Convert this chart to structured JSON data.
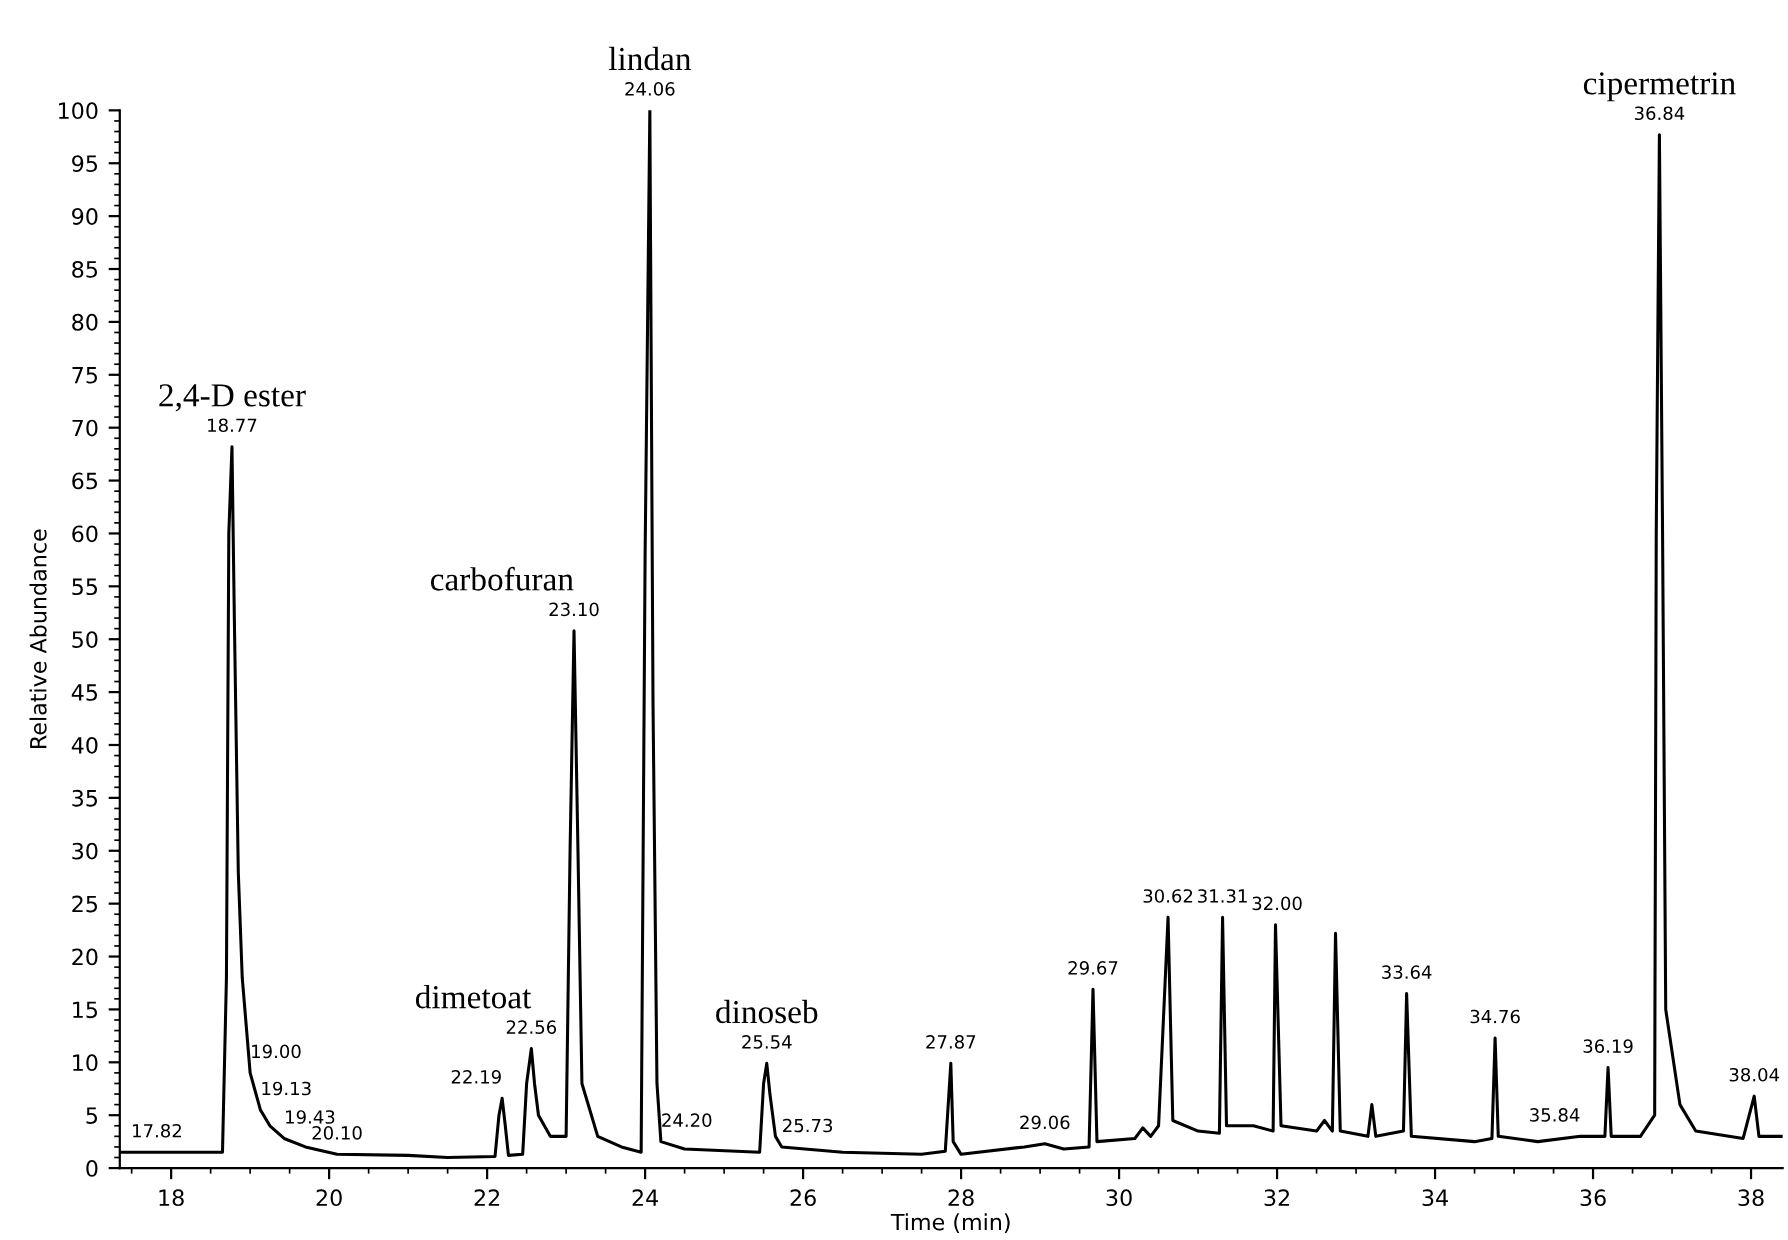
{
  "chart_data": {
    "type": "line",
    "xlabel": "Time (min)",
    "ylabel": "Relative Abundance",
    "xlim": [
      17.35,
      38.4
    ],
    "ylim": [
      0,
      100
    ],
    "xticks": [
      18,
      20,
      22,
      24,
      26,
      28,
      30,
      32,
      34,
      36,
      38
    ],
    "yticks": [
      0,
      5,
      10,
      15,
      20,
      25,
      30,
      35,
      40,
      45,
      50,
      55,
      60,
      65,
      70,
      75,
      80,
      85,
      90,
      95,
      100
    ],
    "grid": false,
    "legend": false,
    "marker": "none",
    "line_style": "solid",
    "series": [
      {
        "color": "#000000",
        "x": [
          17.35,
          18.65,
          18.7,
          18.73,
          18.77,
          18.8,
          18.85,
          18.9,
          19.0,
          19.13,
          19.25,
          19.43,
          19.7,
          20.1,
          21.0,
          21.5,
          22.1,
          22.15,
          22.19,
          22.23,
          22.27,
          22.45,
          22.5,
          22.56,
          22.6,
          22.65,
          22.8,
          23.0,
          23.05,
          23.1,
          23.15,
          23.2,
          23.4,
          23.7,
          23.95,
          24.0,
          24.06,
          24.1,
          24.15,
          24.2,
          24.5,
          25.45,
          25.5,
          25.54,
          25.58,
          25.65,
          25.73,
          26.5,
          27.5,
          27.8,
          27.87,
          27.9,
          28.0,
          28.8,
          29.06,
          29.3,
          29.62,
          29.67,
          29.72,
          30.2,
          30.3,
          30.4,
          30.5,
          30.62,
          30.68,
          31.0,
          31.27,
          31.31,
          31.36,
          31.7,
          31.95,
          31.98,
          32.05,
          32.5,
          32.6,
          32.7,
          32.74,
          32.8,
          33.15,
          33.2,
          33.25,
          33.6,
          33.64,
          33.7,
          34.5,
          34.72,
          34.76,
          34.8,
          35.3,
          35.84,
          36.15,
          36.19,
          36.23,
          36.6,
          36.78,
          36.8,
          36.84,
          36.88,
          36.92,
          37.1,
          37.3,
          37.9,
          38.04,
          38.1,
          38.4
        ],
        "values": [
          1.5,
          1.5,
          18,
          60,
          68.2,
          52,
          28,
          18,
          9,
          5.5,
          4,
          2.8,
          2,
          1.3,
          1.2,
          1.0,
          1.1,
          5,
          6.6,
          4,
          1.2,
          1.3,
          8,
          11.3,
          8,
          5,
          3,
          3,
          30,
          50.8,
          30,
          8,
          3,
          2,
          1.5,
          58,
          100,
          44,
          8,
          2.5,
          1.8,
          1.5,
          8,
          9.9,
          7,
          3,
          2,
          1.5,
          1.3,
          1.6,
          9.9,
          2.5,
          1.3,
          2,
          2.3,
          1.8,
          2,
          16.9,
          2.5,
          2.8,
          3.8,
          3,
          4,
          23.7,
          4.5,
          3.5,
          3.3,
          23.7,
          4,
          4,
          3.5,
          23,
          4,
          3.5,
          4.5,
          3.5,
          22.2,
          3.5,
          3,
          6,
          3,
          3.5,
          16.5,
          3,
          2.5,
          2.8,
          12.3,
          3,
          2.5,
          3,
          3,
          9.5,
          3,
          3,
          5,
          60,
          97.7,
          60,
          15,
          6,
          3.5,
          2.8,
          6.8,
          3,
          3
        ]
      }
    ],
    "annotations": [
      {
        "text": "17.82",
        "x": 17.82,
        "y": 1.5
      },
      {
        "text": "18.77",
        "x": 18.77,
        "y": 68.2
      },
      {
        "text": "2,4-D ester",
        "x": 18.77,
        "y": 68.2
      },
      {
        "text": "19.00",
        "x": 19.0,
        "y": 9
      },
      {
        "text": "19.13",
        "x": 19.13,
        "y": 5.5
      },
      {
        "text": "19.43",
        "x": 19.43,
        "y": 2.8
      },
      {
        "text": "20.10",
        "x": 20.1,
        "y": 1.3
      },
      {
        "text": "22.19",
        "x": 22.19,
        "y": 6.6
      },
      {
        "text": "22.56",
        "x": 22.56,
        "y": 11.3
      },
      {
        "text": "dimetoat",
        "x": 22.56,
        "y": 11.3
      },
      {
        "text": "23.10",
        "x": 23.1,
        "y": 50.8
      },
      {
        "text": "carbofuran",
        "x": 23.1,
        "y": 50.8
      },
      {
        "text": "24.06",
        "x": 24.06,
        "y": 100
      },
      {
        "text": "lindan",
        "x": 24.06,
        "y": 100
      },
      {
        "text": "24.20",
        "x": 24.2,
        "y": 2.5
      },
      {
        "text": "25.54",
        "x": 25.54,
        "y": 9.9
      },
      {
        "text": "dinoseb",
        "x": 25.54,
        "y": 9.9
      },
      {
        "text": "25.73",
        "x": 25.73,
        "y": 2
      },
      {
        "text": "27.87",
        "x": 27.87,
        "y": 9.9
      },
      {
        "text": "29.06",
        "x": 29.06,
        "y": 2.3
      },
      {
        "text": "29.67",
        "x": 29.67,
        "y": 16.9
      },
      {
        "text": "30.62",
        "x": 30.62,
        "y": 23.7
      },
      {
        "text": "31.31",
        "x": 31.31,
        "y": 23.7
      },
      {
        "text": "32.00",
        "x": 32.0,
        "y": 23
      },
      {
        "text": "33.64",
        "x": 33.64,
        "y": 16.5
      },
      {
        "text": "34.76",
        "x": 34.76,
        "y": 12.3
      },
      {
        "text": "35.84",
        "x": 35.84,
        "y": 3
      },
      {
        "text": "36.19",
        "x": 36.19,
        "y": 9.5
      },
      {
        "text": "36.84",
        "x": 36.84,
        "y": 97.7
      },
      {
        "text": "cipermetrin",
        "x": 36.84,
        "y": 97.7
      },
      {
        "text": "38.04",
        "x": 38.04,
        "y": 6.8
      }
    ]
  }
}
